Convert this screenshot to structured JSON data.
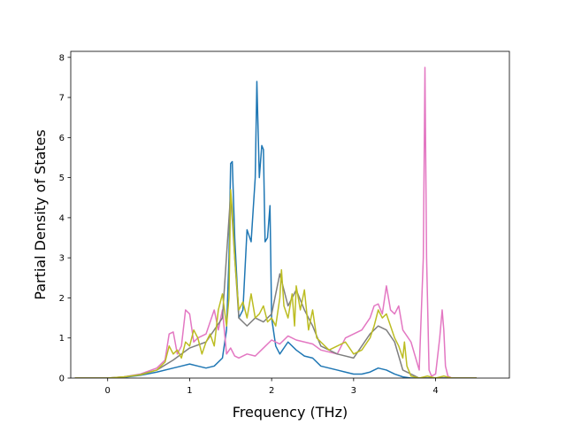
{
  "chart_data": {
    "type": "line",
    "title": "",
    "xlabel": "Frequency (THz)",
    "ylabel": "Partial Density of States",
    "xlim": [
      -0.45,
      4.9
    ],
    "ylim": [
      0,
      8.15
    ],
    "grid": false,
    "legend": "none",
    "xticks": [
      0,
      1,
      2,
      3,
      4
    ],
    "yticks": [
      0,
      1,
      2,
      3,
      4,
      5,
      6,
      7,
      8
    ],
    "series": [
      {
        "color": "#1f77b4",
        "x": [
          -0.4,
          0.0,
          0.2,
          0.4,
          0.6,
          0.8,
          0.9,
          1.0,
          1.1,
          1.2,
          1.3,
          1.4,
          1.45,
          1.48,
          1.5,
          1.52,
          1.55,
          1.6,
          1.65,
          1.7,
          1.75,
          1.8,
          1.82,
          1.85,
          1.88,
          1.9,
          1.92,
          1.95,
          1.98,
          2.0,
          2.05,
          2.1,
          2.2,
          2.3,
          2.4,
          2.5,
          2.6,
          2.7,
          2.8,
          2.9,
          3.0,
          3.1,
          3.2,
          3.3,
          3.4,
          3.5,
          3.6,
          3.7,
          3.8,
          3.9,
          4.0,
          4.2,
          4.5
        ],
        "y": [
          0,
          0,
          0.02,
          0.07,
          0.15,
          0.25,
          0.3,
          0.35,
          0.3,
          0.25,
          0.3,
          0.5,
          1.2,
          3.0,
          5.35,
          5.4,
          3.5,
          1.5,
          1.7,
          3.7,
          3.4,
          5.0,
          7.4,
          5.0,
          5.8,
          5.7,
          3.4,
          3.5,
          4.3,
          1.5,
          0.8,
          0.6,
          0.9,
          0.7,
          0.55,
          0.5,
          0.3,
          0.25,
          0.2,
          0.15,
          0.1,
          0.1,
          0.15,
          0.25,
          0.2,
          0.1,
          0.03,
          0.0,
          0.0,
          0.0,
          0.0,
          0.0,
          0.0
        ]
      },
      {
        "color": "#e377c2",
        "x": [
          -0.4,
          0.0,
          0.2,
          0.4,
          0.6,
          0.7,
          0.75,
          0.8,
          0.85,
          0.9,
          0.95,
          1.0,
          1.05,
          1.1,
          1.2,
          1.3,
          1.35,
          1.4,
          1.45,
          1.5,
          1.55,
          1.6,
          1.7,
          1.8,
          1.9,
          2.0,
          2.1,
          2.2,
          2.3,
          2.4,
          2.5,
          2.6,
          2.7,
          2.8,
          2.9,
          3.0,
          3.1,
          3.2,
          3.25,
          3.3,
          3.35,
          3.4,
          3.45,
          3.5,
          3.55,
          3.6,
          3.7,
          3.8,
          3.85,
          3.87,
          3.89,
          3.92,
          3.95,
          4.0,
          4.05,
          4.08,
          4.1,
          4.12,
          4.15,
          4.2,
          4.5
        ],
        "y": [
          0,
          0,
          0.03,
          0.1,
          0.25,
          0.45,
          1.1,
          1.15,
          0.6,
          0.8,
          1.7,
          1.6,
          0.9,
          1.0,
          1.1,
          1.7,
          1.2,
          1.7,
          0.6,
          0.75,
          0.55,
          0.5,
          0.6,
          0.55,
          0.75,
          0.95,
          0.85,
          1.05,
          0.95,
          0.9,
          0.85,
          0.7,
          0.65,
          0.6,
          1.0,
          1.1,
          1.2,
          1.5,
          1.8,
          1.85,
          1.6,
          2.3,
          1.7,
          1.6,
          1.8,
          1.2,
          0.9,
          0.2,
          3.0,
          7.75,
          3.0,
          0.2,
          0.05,
          0.1,
          1.0,
          1.7,
          1.2,
          0.3,
          0.05,
          0.0,
          0.0
        ]
      },
      {
        "color": "#7f7f7f",
        "x": [
          -0.4,
          0.0,
          0.2,
          0.4,
          0.6,
          0.8,
          1.0,
          1.2,
          1.4,
          1.5,
          1.55,
          1.6,
          1.7,
          1.8,
          1.9,
          2.0,
          2.1,
          2.2,
          2.3,
          2.4,
          2.5,
          2.6,
          2.8,
          3.0,
          3.2,
          3.3,
          3.4,
          3.5,
          3.6,
          3.8,
          4.0,
          4.5
        ],
        "y": [
          0,
          0,
          0.03,
          0.09,
          0.2,
          0.45,
          0.75,
          0.9,
          1.5,
          4.6,
          3.0,
          1.5,
          1.3,
          1.5,
          1.4,
          1.6,
          2.6,
          1.8,
          2.2,
          1.7,
          1.3,
          0.8,
          0.6,
          0.5,
          1.1,
          1.3,
          1.2,
          0.9,
          0.2,
          0.0,
          0.0,
          0.0
        ]
      },
      {
        "color": "#bcbd22",
        "x": [
          -0.4,
          0.0,
          0.2,
          0.4,
          0.6,
          0.7,
          0.75,
          0.8,
          0.85,
          0.9,
          0.95,
          1.0,
          1.05,
          1.1,
          1.15,
          1.2,
          1.25,
          1.3,
          1.35,
          1.4,
          1.45,
          1.48,
          1.5,
          1.52,
          1.55,
          1.58,
          1.6,
          1.65,
          1.7,
          1.75,
          1.8,
          1.85,
          1.9,
          1.95,
          2.0,
          2.05,
          2.1,
          2.12,
          2.15,
          2.2,
          2.25,
          2.28,
          2.3,
          2.35,
          2.4,
          2.45,
          2.5,
          2.55,
          2.6,
          2.7,
          2.8,
          2.9,
          3.0,
          3.1,
          3.2,
          3.25,
          3.3,
          3.35,
          3.4,
          3.45,
          3.5,
          3.55,
          3.6,
          3.62,
          3.65,
          3.7,
          3.8,
          3.9,
          4.0,
          4.1,
          4.2,
          4.5
        ],
        "y": [
          0,
          0,
          0.03,
          0.08,
          0.2,
          0.4,
          0.8,
          0.6,
          0.7,
          0.5,
          0.9,
          0.8,
          1.2,
          1.0,
          0.6,
          0.9,
          1.1,
          0.8,
          1.7,
          2.1,
          1.3,
          2.0,
          4.7,
          4.2,
          3.0,
          2.2,
          1.7,
          1.9,
          1.5,
          2.1,
          1.5,
          1.6,
          1.8,
          1.4,
          1.5,
          1.3,
          2.0,
          2.7,
          1.8,
          1.5,
          2.1,
          1.3,
          2.3,
          1.7,
          2.2,
          1.2,
          1.7,
          1.0,
          0.9,
          0.7,
          0.8,
          0.9,
          0.6,
          0.7,
          1.0,
          1.3,
          1.7,
          1.5,
          1.6,
          1.3,
          1.0,
          0.8,
          0.5,
          0.9,
          0.3,
          0.05,
          0.0,
          0.05,
          0.0,
          0.05,
          0.0,
          0.0
        ]
      }
    ]
  }
}
